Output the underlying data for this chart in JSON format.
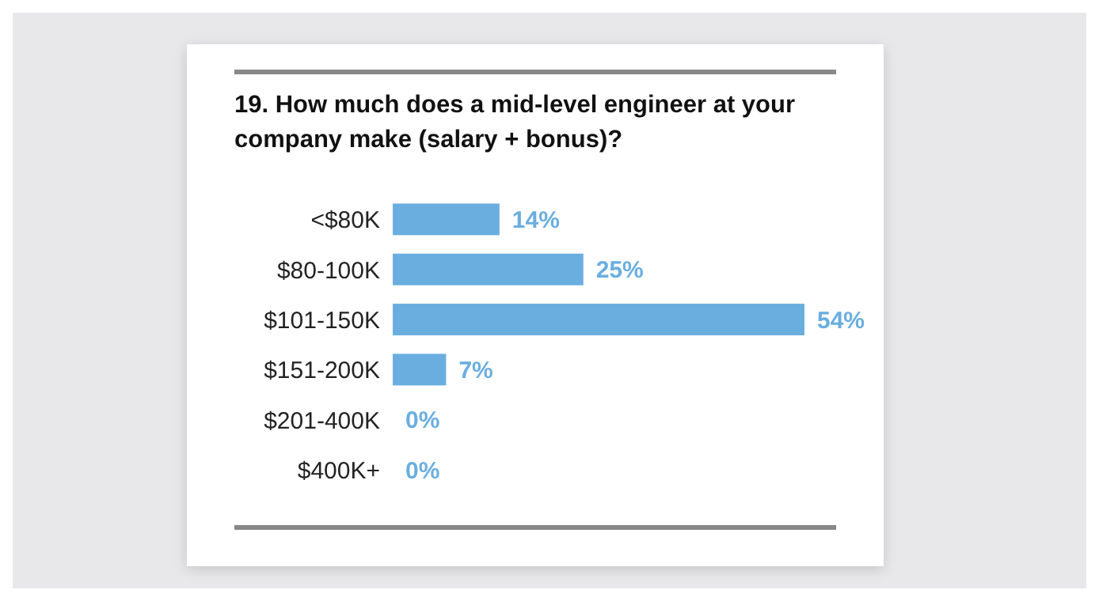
{
  "chart_data": {
    "type": "bar",
    "orientation": "horizontal",
    "title": "19. How much does a mid-level engineer at your company make (salary + bonus)?",
    "categories": [
      "<$80K",
      "$80-100K",
      "$101-150K",
      "$151-200K",
      "$201-400K",
      "$400K+"
    ],
    "values": [
      14,
      25,
      54,
      7,
      0,
      0
    ],
    "value_labels": [
      "14%",
      "25%",
      "54%",
      "7%",
      "0%",
      "0%"
    ],
    "color": "#6aaee0"
  }
}
